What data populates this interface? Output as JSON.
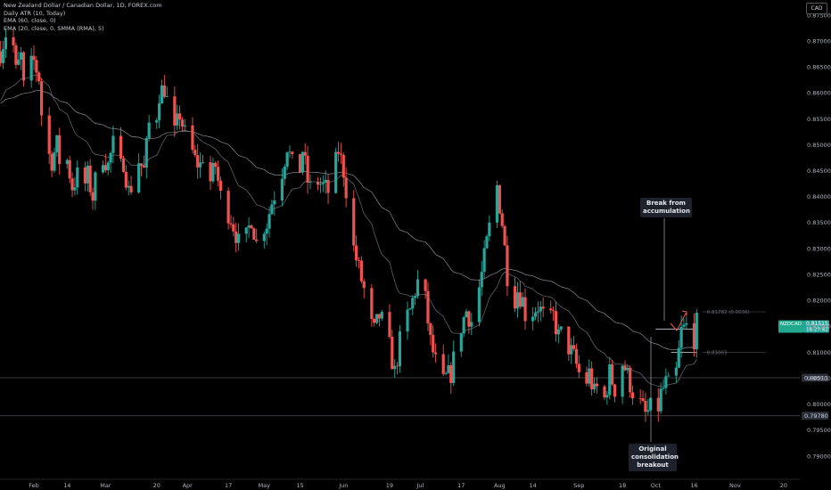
{
  "legend": {
    "title": "New Zealand Dollar / Canadian Dollar, 1D, FOREX.com",
    "indicators": [
      "Daily ATR (10, Today)",
      "EMA (60, close, 0)",
      "EMA (20, close, 0, SMMA (RMA), 5)"
    ]
  },
  "currency_label": "CAD",
  "annotations": {
    "breakout": "Break from accumulation",
    "consolidation": "Original consolidation breakout"
  },
  "chart_data": {
    "type": "candlestick",
    "symbol_tag": "NZDCAD",
    "last_price": "0.81515",
    "countdown": "18:27:42",
    "ylim": [
      0.7875,
      0.88
    ],
    "y_ticks": [
      "0.87500",
      "0.87000",
      "0.86500",
      "0.86000",
      "0.85500",
      "0.85000",
      "0.84500",
      "0.84000",
      "0.83500",
      "0.83000",
      "0.82500",
      "0.82000",
      "0.81500",
      "0.81000",
      "0.80500",
      "0.80000",
      "0.79500",
      "0.79000"
    ],
    "x_ticks": [
      {
        "label": "Feb",
        "day": 29
      },
      {
        "label": "14",
        "day": 42
      },
      {
        "label": "Mar",
        "day": 57
      },
      {
        "label": "20",
        "day": 77
      },
      {
        "label": "Apr",
        "day": 89
      },
      {
        "label": "17",
        "day": 105
      },
      {
        "label": "May",
        "day": 119
      },
      {
        "label": "15",
        "day": 133
      },
      {
        "label": "Jun",
        "day": 150
      },
      {
        "label": "19",
        "day": 168
      },
      {
        "label": "Jul",
        "day": 180
      },
      {
        "label": "17",
        "day": 196
      },
      {
        "label": "Aug",
        "day": 211
      },
      {
        "label": "14",
        "day": 224
      },
      {
        "label": "Sep",
        "day": 242
      },
      {
        "label": "18",
        "day": 259
      },
      {
        "label": "Oct",
        "day": 272
      },
      {
        "label": "16",
        "day": 287
      },
      {
        "label": "Nov",
        "day": 303
      },
      {
        "label": "20",
        "day": 322
      }
    ],
    "levels": [
      {
        "price": 0.80511,
        "label": "0.80511"
      },
      {
        "price": 0.7978,
        "label": "0.79780"
      }
    ],
    "targets": [
      {
        "price": 0.81782,
        "label": "0.81782 (0.0036)"
      },
      {
        "price": 0.81003,
        "label": "0.81003"
      }
    ],
    "close_path": [
      [
        16,
        0.868
      ],
      [
        18,
        0.8715
      ],
      [
        19,
        0.865
      ],
      [
        21,
        0.869
      ],
      [
        22,
        0.864
      ],
      [
        24,
        0.867
      ],
      [
        25,
        0.861
      ],
      [
        27,
        0.8645
      ],
      [
        29,
        0.866
      ],
      [
        31,
        0.863
      ],
      [
        32,
        0.856
      ],
      [
        34,
        0.849
      ],
      [
        36,
        0.847
      ],
      [
        38,
        0.85
      ],
      [
        40,
        0.844
      ],
      [
        42,
        0.847
      ],
      [
        44,
        0.842
      ],
      [
        46,
        0.844
      ],
      [
        48,
        0.841
      ],
      [
        50,
        0.844
      ],
      [
        52,
        0.84
      ],
      [
        54,
        0.846
      ],
      [
        56,
        0.848
      ],
      [
        58,
        0.846
      ],
      [
        60,
        0.85
      ],
      [
        62,
        0.844
      ],
      [
        64,
        0.847
      ],
      [
        66,
        0.841
      ],
      [
        68,
        0.843
      ],
      [
        70,
        0.847
      ],
      [
        72,
        0.845
      ],
      [
        74,
        0.854
      ],
      [
        76,
        0.852
      ],
      [
        78,
        0.86
      ],
      [
        80,
        0.861
      ],
      [
        82,
        0.856
      ],
      [
        84,
        0.852
      ],
      [
        86,
        0.856
      ],
      [
        88,
        0.852
      ],
      [
        90,
        0.85
      ],
      [
        92,
        0.847
      ],
      [
        94,
        0.846
      ],
      [
        96,
        0.85
      ],
      [
        98,
        0.843
      ],
      [
        100,
        0.846
      ],
      [
        102,
        0.84
      ],
      [
        104,
        0.838
      ],
      [
        106,
        0.836
      ],
      [
        108,
        0.833
      ],
      [
        110,
        0.829
      ],
      [
        112,
        0.832
      ],
      [
        114,
        0.836
      ],
      [
        116,
        0.831
      ],
      [
        118,
        0.834
      ],
      [
        120,
        0.835
      ],
      [
        122,
        0.839
      ],
      [
        124,
        0.842
      ],
      [
        126,
        0.845
      ],
      [
        128,
        0.85
      ],
      [
        130,
        0.846
      ],
      [
        132,
        0.842
      ],
      [
        134,
        0.849
      ],
      [
        136,
        0.843
      ],
      [
        138,
        0.84
      ],
      [
        140,
        0.843
      ],
      [
        142,
        0.842
      ],
      [
        144,
        0.841
      ],
      [
        146,
        0.844
      ],
      [
        148,
        0.849
      ],
      [
        150,
        0.845
      ],
      [
        152,
        0.838
      ],
      [
        154,
        0.83
      ],
      [
        156,
        0.826
      ],
      [
        158,
        0.822
      ],
      [
        160,
        0.816
      ],
      [
        162,
        0.814
      ],
      [
        164,
        0.817
      ],
      [
        166,
        0.815
      ],
      [
        168,
        0.811
      ],
      [
        170,
        0.806
      ],
      [
        172,
        0.812
      ],
      [
        174,
        0.816
      ],
      [
        176,
        0.818
      ],
      [
        178,
        0.822
      ],
      [
        180,
        0.825
      ],
      [
        182,
        0.82
      ],
      [
        184,
        0.812
      ],
      [
        186,
        0.808
      ],
      [
        188,
        0.803
      ],
      [
        190,
        0.805
      ],
      [
        192,
        0.806
      ],
      [
        194,
        0.811
      ],
      [
        196,
        0.815
      ],
      [
        198,
        0.818
      ],
      [
        200,
        0.816
      ],
      [
        202,
        0.82
      ],
      [
        204,
        0.825
      ],
      [
        206,
        0.831
      ],
      [
        208,
        0.837
      ],
      [
        210,
        0.842
      ],
      [
        212,
        0.835
      ],
      [
        214,
        0.825
      ],
      [
        216,
        0.819
      ],
      [
        218,
        0.822
      ],
      [
        220,
        0.82
      ],
      [
        222,
        0.815
      ],
      [
        224,
        0.818
      ],
      [
        226,
        0.819
      ],
      [
        228,
        0.817
      ],
      [
        230,
        0.815
      ],
      [
        232,
        0.817
      ],
      [
        234,
        0.813
      ],
      [
        236,
        0.814
      ],
      [
        238,
        0.811
      ],
      [
        240,
        0.809
      ],
      [
        242,
        0.806
      ],
      [
        244,
        0.803
      ],
      [
        246,
        0.806
      ],
      [
        248,
        0.802
      ],
      [
        250,
        0.804
      ],
      [
        252,
        0.801
      ],
      [
        254,
        0.806
      ],
      [
        256,
        0.803
      ],
      [
        258,
        0.809
      ],
      [
        260,
        0.807
      ],
      [
        262,
        0.804
      ],
      [
        264,
        0.801
      ],
      [
        266,
        0.8
      ],
      [
        268,
        0.798
      ],
      [
        270,
        0.799
      ],
      [
        272,
        0.797
      ],
      [
        274,
        0.802
      ],
      [
        276,
        0.804
      ],
      [
        278,
        0.803
      ],
      [
        280,
        0.806
      ],
      [
        282,
        0.814
      ],
      [
        284,
        0.815
      ],
      [
        286,
        0.81
      ],
      [
        288,
        0.8155
      ]
    ]
  }
}
